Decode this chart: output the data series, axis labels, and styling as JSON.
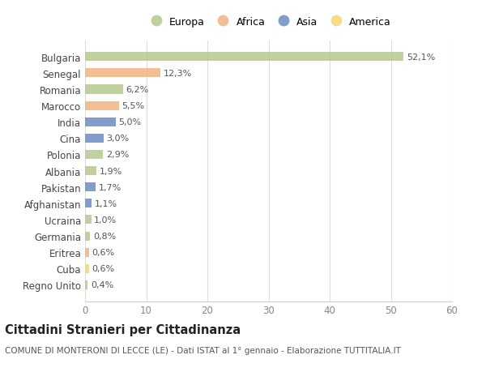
{
  "countries": [
    "Bulgaria",
    "Senegal",
    "Romania",
    "Marocco",
    "India",
    "Cina",
    "Polonia",
    "Albania",
    "Pakistan",
    "Afghanistan",
    "Ucraina",
    "Germania",
    "Eritrea",
    "Cuba",
    "Regno Unito"
  ],
  "values": [
    52.1,
    12.3,
    6.2,
    5.5,
    5.0,
    3.0,
    2.9,
    1.9,
    1.7,
    1.1,
    1.0,
    0.8,
    0.6,
    0.6,
    0.4
  ],
  "labels": [
    "52,1%",
    "12,3%",
    "6,2%",
    "5,5%",
    "5,0%",
    "3,0%",
    "2,9%",
    "1,9%",
    "1,7%",
    "1,1%",
    "1,0%",
    "0,8%",
    "0,6%",
    "0,6%",
    "0,4%"
  ],
  "continents": [
    "Europa",
    "Africa",
    "Europa",
    "Africa",
    "Asia",
    "Asia",
    "Europa",
    "Europa",
    "Asia",
    "Asia",
    "Europa",
    "Europa",
    "Africa",
    "America",
    "Europa"
  ],
  "continent_colors": {
    "Europa": "#b5c98e",
    "Africa": "#f0b482",
    "Asia": "#6b8cc4",
    "America": "#f5d76e"
  },
  "legend_order": [
    "Europa",
    "Africa",
    "Asia",
    "America"
  ],
  "title": "Cittadini Stranieri per Cittadinanza",
  "subtitle": "COMUNE DI MONTERONI DI LECCE (LE) - Dati ISTAT al 1° gennaio - Elaborazione TUTTITALIA.IT",
  "xlim": [
    0,
    60
  ],
  "xticks": [
    0,
    10,
    20,
    30,
    40,
    50,
    60
  ],
  "background_color": "#ffffff",
  "bar_height": 0.55,
  "label_fontsize": 8,
  "title_fontsize": 10.5,
  "subtitle_fontsize": 7.5
}
